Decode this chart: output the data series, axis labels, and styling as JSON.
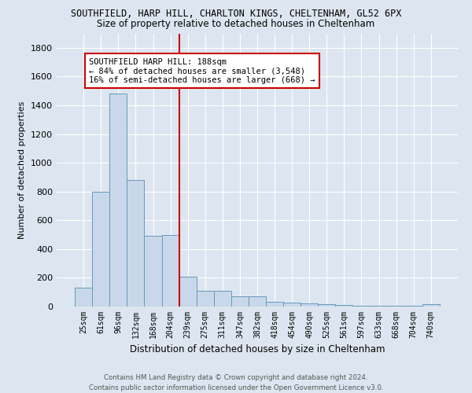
{
  "title_line1": "SOUTHFIELD, HARP HILL, CHARLTON KINGS, CHELTENHAM, GL52 6PX",
  "title_line2": "Size of property relative to detached houses in Cheltenham",
  "xlabel": "Distribution of detached houses by size in Cheltenham",
  "ylabel": "Number of detached properties",
  "bar_labels": [
    "25sqm",
    "61sqm",
    "96sqm",
    "132sqm",
    "168sqm",
    "204sqm",
    "239sqm",
    "275sqm",
    "311sqm",
    "347sqm",
    "382sqm",
    "418sqm",
    "454sqm",
    "490sqm",
    "525sqm",
    "561sqm",
    "597sqm",
    "633sqm",
    "668sqm",
    "704sqm",
    "740sqm"
  ],
  "bar_values": [
    130,
    800,
    1480,
    880,
    490,
    500,
    210,
    110,
    110,
    70,
    70,
    35,
    30,
    20,
    15,
    10,
    8,
    5,
    5,
    3,
    18
  ],
  "bar_color": "#c8d8ea",
  "bar_edgecolor": "#6699bb",
  "vline_x": 5.5,
  "vline_color": "#cc0000",
  "annotation_text": "SOUTHFIELD HARP HILL: 188sqm\n← 84% of detached houses are smaller (3,548)\n16% of semi-detached houses are larger (668) →",
  "bg_color": "#dde6f0",
  "plot_bg_color": "#dde6f0",
  "footer_line1": "Contains HM Land Registry data © Crown copyright and database right 2024.",
  "footer_line2": "Contains public sector information licensed under the Open Government Licence v3.0.",
  "ylim": [
    0,
    1900
  ],
  "yticks": [
    0,
    200,
    400,
    600,
    800,
    1000,
    1200,
    1400,
    1600,
    1800
  ]
}
